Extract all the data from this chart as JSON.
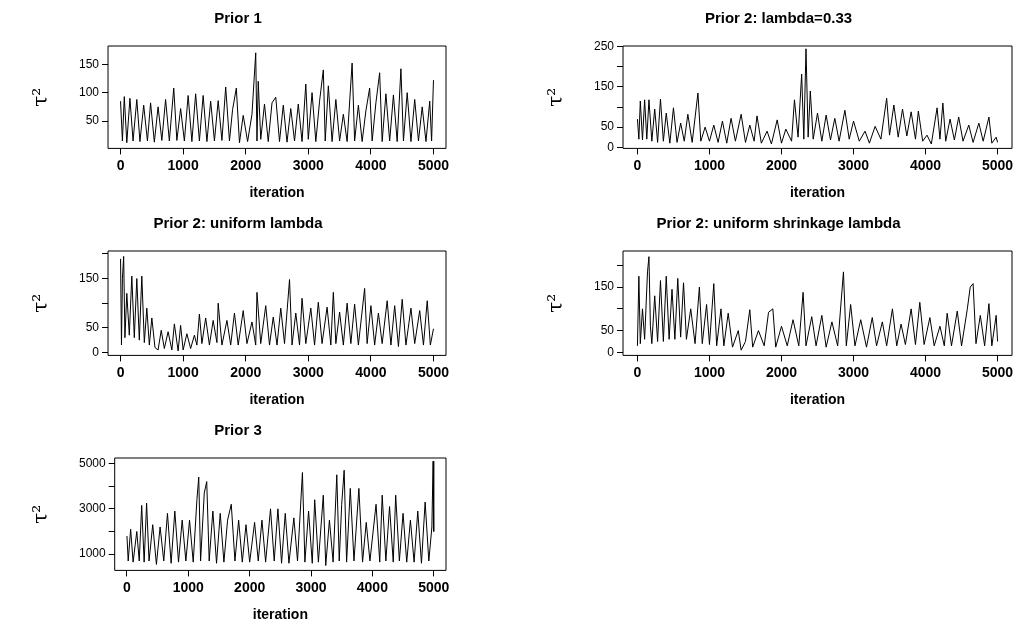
{
  "chart_data": [
    {
      "type": "line",
      "title": "Prior 1",
      "xlabel": "iteration",
      "ylabel": "τ²",
      "xlim": [
        -200,
        5200
      ],
      "xticks": [
        0,
        1000,
        2000,
        3000,
        4000,
        5000
      ],
      "ylim": [
        2,
        182
      ],
      "yticks": [
        50,
        100,
        150
      ],
      "series": [
        {
          "color": "#000000",
          "x": [
            0,
            30,
            60,
            100,
            150,
            200,
            260,
            310,
            370,
            430,
            480,
            540,
            600,
            660,
            720,
            780,
            850,
            900,
            960,
            1020,
            1080,
            1140,
            1200,
            1260,
            1320,
            1380,
            1440,
            1500,
            1560,
            1620,
            1680,
            1740,
            1790,
            1850,
            1900,
            1960,
            2030,
            2100,
            2160,
            2180,
            2200,
            2240,
            2300,
            2360,
            2420,
            2480,
            2540,
            2600,
            2660,
            2720,
            2780,
            2840,
            2900,
            2960,
            3000,
            3060,
            3120,
            3180,
            3240,
            3270,
            3320,
            3380,
            3440,
            3500,
            3560,
            3620,
            3700,
            3740,
            3800,
            3860,
            3920,
            3980,
            4020,
            4080,
            4140,
            4180,
            4240,
            4300,
            4360,
            4420,
            4480,
            4520,
            4580,
            4640,
            4700,
            4760,
            4820,
            4880,
            4940,
            4970,
            5000
          ],
          "values": [
            85,
            15,
            93,
            12,
            90,
            15,
            88,
            14,
            78,
            15,
            82,
            13,
            75,
            16,
            88,
            15,
            108,
            16,
            72,
            15,
            95,
            14,
            98,
            15,
            95,
            14,
            85,
            15,
            86,
            16,
            110,
            15,
            70,
            108,
            12,
            60,
            14,
            62,
            170,
            15,
            120,
            18,
            80,
            14,
            82,
            92,
            14,
            78,
            13,
            72,
            15,
            80,
            14,
            115,
            18,
            100,
            14,
            85,
            140,
            15,
            112,
            14,
            88,
            15,
            62,
            14,
            152,
            15,
            78,
            14,
            68,
            108,
            15,
            82,
            135,
            14,
            98,
            15,
            96,
            14,
            142,
            15,
            100,
            14,
            88,
            15,
            75,
            14,
            85,
            15,
            122
          ]
        }
      ]
    },
    {
      "type": "line",
      "title": "Prior 2: lambda=0.33",
      "xlabel": "iteration",
      "ylabel": "τ²",
      "xlim": [
        -200,
        5200
      ],
      "xticks": [
        0,
        1000,
        2000,
        3000,
        4000,
        5000
      ],
      "ylim": [
        -3,
        252
      ],
      "yticks": [
        0,
        50,
        {
          "value": 100,
          "label": null
        },
        150,
        {
          "value": 200,
          "label": null
        },
        250
      ],
      "series": [
        {
          "color": "#000000",
          "x": [
            0,
            20,
            40,
            70,
            100,
            130,
            160,
            200,
            240,
            280,
            320,
            360,
            400,
            450,
            500,
            550,
            600,
            650,
            700,
            760,
            840,
            880,
            940,
            1000,
            1060,
            1120,
            1180,
            1240,
            1300,
            1360,
            1440,
            1500,
            1560,
            1620,
            1660,
            1720,
            1800,
            1860,
            1940,
            2000,
            2060,
            2140,
            2180,
            2230,
            2280,
            2310,
            2340,
            2370,
            2400,
            2440,
            2500,
            2560,
            2620,
            2680,
            2740,
            2800,
            2880,
            2940,
            3000,
            3080,
            3160,
            3220,
            3300,
            3380,
            3460,
            3500,
            3560,
            3620,
            3680,
            3740,
            3800,
            3860,
            3900,
            3960,
            4020,
            4080,
            4160,
            4200,
            4240,
            4280,
            4340,
            4400,
            4460,
            4520,
            4600,
            4660,
            4740,
            4800,
            4880,
            4920,
            4980,
            5000
          ],
          "values": [
            70,
            20,
            115,
            18,
            118,
            20,
            118,
            15,
            95,
            12,
            120,
            15,
            85,
            10,
            98,
            12,
            60,
            15,
            82,
            12,
            135,
            15,
            50,
            15,
            55,
            12,
            65,
            10,
            72,
            15,
            82,
            12,
            55,
            15,
            78,
            10,
            40,
            8,
            68,
            10,
            45,
            15,
            118,
            25,
            182,
            20,
            245,
            25,
            140,
            20,
            85,
            15,
            80,
            18,
            72,
            15,
            92,
            20,
            65,
            15,
            40,
            10,
            52,
            20,
            122,
            30,
            105,
            25,
            95,
            28,
            88,
            20,
            90,
            15,
            30,
            8,
            98,
            20,
            110,
            15,
            70,
            18,
            75,
            15,
            55,
            12,
            60,
            15,
            75,
            10,
            25,
            12
          ]
        }
      ]
    },
    {
      "type": "line",
      "title": "Prior 2: uniform lambda",
      "xlabel": "iteration",
      "ylabel": "τ²",
      "xlim": [
        -200,
        5200
      ],
      "xticks": [
        0,
        1000,
        2000,
        3000,
        4000,
        5000
      ],
      "ylim": [
        -6,
        206
      ],
      "yticks": [
        0,
        50,
        {
          "value": 100,
          "label": null
        },
        150,
        {
          "value": 200,
          "label": null
        }
      ],
      "series": [
        {
          "color": "#000000",
          "x": [
            0,
            15,
            30,
            50,
            70,
            100,
            140,
            180,
            220,
            260,
            300,
            340,
            380,
            420,
            460,
            500,
            550,
            600,
            650,
            700,
            760,
            820,
            860,
            920,
            960,
            1000,
            1060,
            1120,
            1180,
            1220,
            1260,
            1300,
            1360,
            1420,
            1480,
            1540,
            1560,
            1620,
            1700,
            1760,
            1820,
            1880,
            1960,
            2020,
            2100,
            2160,
            2180,
            2240,
            2320,
            2380,
            2440,
            2500,
            2560,
            2620,
            2700,
            2740,
            2800,
            2860,
            2900,
            2960,
            3040,
            3100,
            3160,
            3220,
            3300,
            3360,
            3400,
            3440,
            3500,
            3560,
            3620,
            3680,
            3740,
            3800,
            3900,
            3940,
            4000,
            4060,
            4120,
            4180,
            4260,
            4320,
            4380,
            4440,
            4500,
            4560,
            4640,
            4700,
            4780,
            4840,
            4900,
            4950,
            5000
          ],
          "values": [
            190,
            15,
            150,
            195,
            30,
            120,
            35,
            155,
            30,
            150,
            25,
            155,
            20,
            90,
            15,
            70,
            10,
            5,
            45,
            8,
            42,
            5,
            58,
            3,
            55,
            5,
            38,
            8,
            35,
            15,
            78,
            18,
            70,
            15,
            65,
            20,
            100,
            15,
            65,
            15,
            80,
            15,
            85,
            18,
            62,
            15,
            122,
            18,
            95,
            15,
            72,
            15,
            90,
            18,
            148,
            15,
            80,
            15,
            110,
            18,
            90,
            15,
            102,
            18,
            92,
            15,
            122,
            18,
            82,
            15,
            100,
            18,
            98,
            15,
            130,
            18,
            95,
            15,
            80,
            18,
            105,
            15,
            95,
            12,
            108,
            15,
            90,
            18,
            85,
            15,
            105,
            15,
            48
          ]
        }
      ]
    },
    {
      "type": "line",
      "title": "Prior 2: uniform shrinkage lambda",
      "xlabel": "iteration",
      "ylabel": "τ²",
      "xlim": [
        -200,
        5200
      ],
      "xticks": [
        0,
        1000,
        2000,
        3000,
        4000,
        5000
      ],
      "ylim": [
        -7,
        233
      ],
      "yticks": [
        0,
        50,
        {
          "value": 100,
          "label": null
        },
        150,
        {
          "value": 200,
          "label": null
        }
      ],
      "series": [
        {
          "color": "#000000",
          "x": [
            0,
            20,
            40,
            70,
            100,
            140,
            160,
            180,
            200,
            240,
            280,
            320,
            360,
            400,
            440,
            480,
            520,
            560,
            600,
            640,
            680,
            740,
            800,
            860,
            900,
            960,
            1000,
            1060,
            1100,
            1160,
            1200,
            1260,
            1320,
            1400,
            1440,
            1500,
            1560,
            1600,
            1680,
            1760,
            1820,
            1880,
            1920,
            2000,
            2080,
            2160,
            2240,
            2300,
            2340,
            2420,
            2480,
            2560,
            2620,
            2700,
            2780,
            2860,
            2900,
            2960,
            3020,
            3100,
            3180,
            3260,
            3320,
            3400,
            3460,
            3540,
            3600,
            3660,
            3720,
            3800,
            3860,
            3920,
            3980,
            4060,
            4120,
            4200,
            4260,
            4300,
            4360,
            4440,
            4500,
            4580,
            4620,
            4660,
            4700,
            4760,
            4820,
            4880,
            4920,
            4980,
            5000
          ],
          "values": [
            15,
            175,
            20,
            100,
            30,
            185,
            220,
            60,
            20,
            130,
            25,
            165,
            25,
            175,
            30,
            145,
            30,
            170,
            35,
            160,
            30,
            100,
            20,
            150,
            20,
            110,
            18,
            158,
            15,
            100,
            15,
            90,
            12,
            50,
            5,
            25,
            98,
            12,
            50,
            15,
            92,
            100,
            12,
            60,
            15,
            75,
            15,
            138,
            15,
            82,
            15,
            85,
            12,
            70,
            15,
            185,
            15,
            110,
            15,
            75,
            12,
            80,
            15,
            70,
            15,
            100,
            15,
            65,
            18,
            100,
            18,
            115,
            18,
            80,
            15,
            60,
            15,
            90,
            15,
            95,
            15,
            100,
            150,
            158,
            20,
            85,
            15,
            112,
            15,
            85,
            25
          ]
        }
      ]
    },
    {
      "type": "line",
      "title": "Prior 3",
      "xlabel": "iteration",
      "ylabel": "τ²",
      "xlim": [
        -200,
        5200
      ],
      "xticks": [
        0,
        1000,
        2000,
        3000,
        4000,
        5000
      ],
      "ylim": [
        285,
        5240
      ],
      "yticks": [
        1000,
        {
          "value": 2000,
          "label": null
        },
        3000,
        {
          "value": 4000,
          "label": null
        },
        5000
      ],
      "series": [
        {
          "color": "#000000",
          "x": [
            0,
            20,
            60,
            100,
            160,
            200,
            240,
            280,
            320,
            360,
            420,
            480,
            540,
            600,
            660,
            720,
            780,
            840,
            900,
            960,
            1020,
            1080,
            1140,
            1170,
            1200,
            1260,
            1300,
            1340,
            1400,
            1460,
            1520,
            1580,
            1640,
            1700,
            1760,
            1820,
            1880,
            1940,
            2000,
            2080,
            2140,
            2200,
            2260,
            2340,
            2400,
            2460,
            2520,
            2580,
            2640,
            2720,
            2780,
            2860,
            2900,
            2960,
            3020,
            3060,
            3120,
            3200,
            3240,
            3300,
            3360,
            3420,
            3460,
            3500,
            3540,
            3580,
            3640,
            3700,
            3780,
            3840,
            3900,
            3960,
            4060,
            4120,
            4160,
            4220,
            4280,
            4340,
            4380,
            4440,
            4500,
            4560,
            4620,
            4680,
            4740,
            4800,
            4860,
            4920,
            4970,
            4990,
            5000
          ],
          "values": [
            1800,
            700,
            2100,
            650,
            2000,
            700,
            3150,
            650,
            3250,
            700,
            2300,
            550,
            2200,
            700,
            2800,
            600,
            2900,
            650,
            2500,
            700,
            2500,
            650,
            3400,
            4400,
            700,
            3700,
            4200,
            700,
            2900,
            600,
            2800,
            650,
            2500,
            3200,
            700,
            2500,
            650,
            2300,
            650,
            2400,
            700,
            2500,
            650,
            3000,
            700,
            3000,
            600,
            2800,
            600,
            2600,
            700,
            4600,
            650,
            2900,
            600,
            3400,
            650,
            3600,
            500,
            2500,
            650,
            4500,
            700,
            3200,
            4700,
            650,
            3900,
            700,
            3900,
            650,
            2400,
            700,
            3200,
            650,
            3600,
            700,
            3100,
            650,
            3600,
            700,
            2800,
            650,
            2500,
            650,
            2900,
            600,
            3300,
            700,
            2200,
            5100,
            2000
          ]
        }
      ]
    }
  ]
}
